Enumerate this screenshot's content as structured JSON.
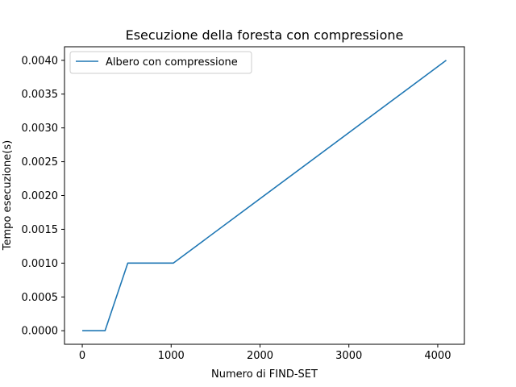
{
  "chart_data": {
    "type": "line",
    "title": "Esecuzione della foresta con compressione",
    "xlabel": "Numero di FIND-SET",
    "ylabel": "Tempo esecuzione(s)",
    "xlim": [
      -200,
      4300
    ],
    "ylim": [
      -0.0002,
      0.0042
    ],
    "xticks": [
      0,
      1000,
      2000,
      3000,
      4000
    ],
    "xtick_labels": [
      "0",
      "1000",
      "2000",
      "3000",
      "4000"
    ],
    "yticks": [
      0.0,
      0.0005,
      0.001,
      0.0015,
      0.002,
      0.0025,
      0.003,
      0.0035,
      0.004
    ],
    "ytick_labels": [
      "0.0000",
      "0.0005",
      "0.0010",
      "0.0015",
      "0.0020",
      "0.0025",
      "0.0030",
      "0.0035",
      "0.0040"
    ],
    "grid": false,
    "legend_position": "top-left",
    "series": [
      {
        "name": "Albero con compressione",
        "color": "#1f77b4",
        "x": [
          0,
          256,
          512,
          1024,
          4096
        ],
        "y": [
          0.0,
          0.0,
          0.001,
          0.001,
          0.004
        ]
      }
    ]
  }
}
